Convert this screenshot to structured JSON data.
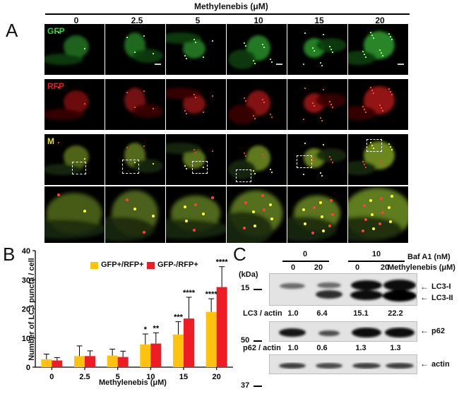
{
  "panel_a": {
    "letter": "A",
    "title": "Methylenebis  (μM)",
    "columns": [
      "0",
      "2.5",
      "5",
      "10",
      "15",
      "20"
    ],
    "row_labels": [
      "GFP",
      "RFP",
      "M"
    ],
    "row_label_colors": [
      "#36d236",
      "#e02020",
      "#e8e020"
    ]
  },
  "panel_b": {
    "letter": "B",
    "ylabel": "Number of LC3 puncta / cell",
    "xlabel": "Methylenebis  (μM)",
    "legend": [
      "GFP+/RFP+",
      "GFP-/RFP+"
    ],
    "colors": [
      "#ffc20e",
      "#ee1c25"
    ],
    "significance": [
      "*",
      "**",
      "***",
      "****",
      "****",
      "****"
    ]
  },
  "chart_data": {
    "type": "bar",
    "categories": [
      "0",
      "2.5",
      "5",
      "10",
      "15",
      "20"
    ],
    "series": [
      {
        "name": "GFP+/RFP+",
        "values": [
          2.7,
          3.8,
          4.0,
          7.8,
          11.2,
          19.0
        ],
        "errors": [
          1.8,
          3.5,
          2.2,
          3.6,
          4.4,
          4.5
        ]
      },
      {
        "name": "GFP-/RFP+",
        "values": [
          2.3,
          3.8,
          3.5,
          8.1,
          16.7,
          27.5
        ],
        "errors": [
          1.0,
          1.8,
          2.0,
          3.7,
          7.3,
          7.0
        ]
      }
    ],
    "ylim": [
      0,
      40
    ],
    "yticks": [
      0,
      10,
      20,
      30,
      40
    ],
    "significance_labels": [
      {
        "category": "10",
        "series": "GFP+/RFP+",
        "label": "*"
      },
      {
        "category": "10",
        "series": "GFP-/RFP+",
        "label": "**"
      },
      {
        "category": "15",
        "series": "GFP+/RFP+",
        "label": "***"
      },
      {
        "category": "15",
        "series": "GFP-/RFP+",
        "label": "****"
      },
      {
        "category": "20",
        "series": "GFP+/RFP+",
        "label": "****"
      },
      {
        "category": "20",
        "series": "GFP-/RFP+",
        "label": "****"
      }
    ]
  },
  "panel_c": {
    "letter": "C",
    "baf_values": [
      "0",
      "10"
    ],
    "baf_label": "Baf A1 (nM)",
    "methylenebis_values": [
      "0",
      "20",
      "0",
      "20"
    ],
    "methylenebis_label": "Methylenebis (μM)",
    "kda_label": "(kDa)",
    "markers": [
      "15",
      "50",
      "37"
    ],
    "band_labels": [
      "LC3-I",
      "LC3-II",
      "p62",
      "actin"
    ],
    "lc3_ratio_label": "LC3 / actin",
    "lc3_ratios": [
      "1.0",
      "6.4",
      "15.1",
      "22.2"
    ],
    "p62_ratio_label": "p62 / actin",
    "p62_ratios": [
      "1.0",
      "0.6",
      "1.3",
      "1.3"
    ]
  }
}
